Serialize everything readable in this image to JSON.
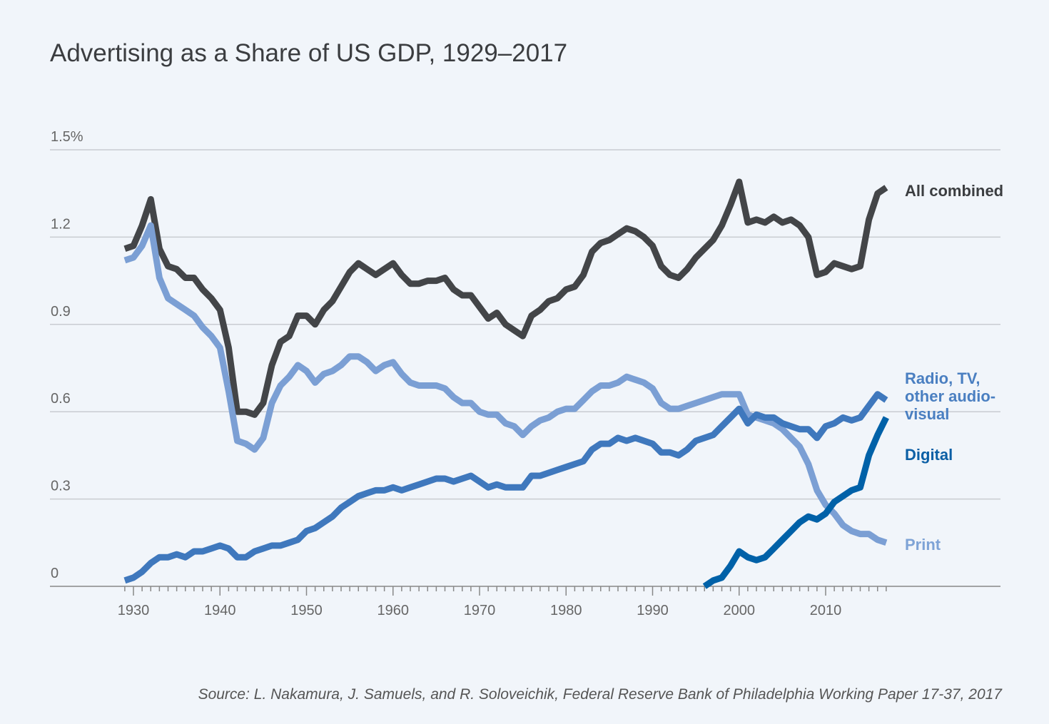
{
  "chart_data": {
    "type": "line",
    "title": "Advertising as a Share of US GDP, 1929–2017",
    "source": "Source: L. Nakamura, J. Samuels, and R. Soloveichik, Federal Reserve Bank of Philadelphia Working Paper 17-37, 2017",
    "xlabel": "",
    "ylabel": "",
    "xlim": [
      1929,
      2017
    ],
    "ylim": [
      0,
      1.5
    ],
    "y_ticks": [
      0,
      0.3,
      0.6,
      0.9,
      1.2,
      1.5
    ],
    "y_tick_labels": [
      "0",
      "0.3",
      "0.6",
      "0.9",
      "1.2",
      "1.5%"
    ],
    "x_ticks": [
      1930,
      1940,
      1950,
      1960,
      1970,
      1980,
      1990,
      2000,
      2010
    ],
    "x_tick_labels": [
      "1930",
      "1940",
      "1950",
      "1960",
      "1970",
      "1980",
      "1990",
      "2000",
      "2010"
    ],
    "grid": "horizontal",
    "series": [
      {
        "name": "All combined",
        "color": "#434548",
        "x_start": 1929,
        "values": [
          1.16,
          1.17,
          1.24,
          1.33,
          1.16,
          1.1,
          1.09,
          1.06,
          1.06,
          1.02,
          0.99,
          0.95,
          0.82,
          0.6,
          0.6,
          0.59,
          0.63,
          0.76,
          0.84,
          0.86,
          0.93,
          0.93,
          0.9,
          0.95,
          0.98,
          1.03,
          1.08,
          1.11,
          1.09,
          1.07,
          1.09,
          1.11,
          1.07,
          1.04,
          1.04,
          1.05,
          1.05,
          1.06,
          1.02,
          1.0,
          1.0,
          0.96,
          0.92,
          0.94,
          0.9,
          0.88,
          0.86,
          0.93,
          0.95,
          0.98,
          0.99,
          1.02,
          1.03,
          1.07,
          1.15,
          1.18,
          1.19,
          1.21,
          1.23,
          1.22,
          1.2,
          1.17,
          1.1,
          1.07,
          1.06,
          1.09,
          1.13,
          1.16,
          1.19,
          1.24,
          1.31,
          1.39,
          1.25,
          1.26,
          1.25,
          1.27,
          1.25,
          1.26,
          1.24,
          1.2,
          1.07,
          1.08,
          1.11,
          1.1,
          1.09,
          1.1,
          1.26,
          1.35,
          1.37
        ]
      },
      {
        "name": "Print",
        "color": "#7b9fd4",
        "x_start": 1929,
        "values": [
          1.12,
          1.13,
          1.17,
          1.24,
          1.06,
          0.99,
          0.97,
          0.95,
          0.93,
          0.89,
          0.86,
          0.82,
          0.67,
          0.5,
          0.49,
          0.47,
          0.51,
          0.63,
          0.69,
          0.72,
          0.76,
          0.74,
          0.7,
          0.73,
          0.74,
          0.76,
          0.79,
          0.79,
          0.77,
          0.74,
          0.76,
          0.77,
          0.73,
          0.7,
          0.69,
          0.69,
          0.69,
          0.68,
          0.65,
          0.63,
          0.63,
          0.6,
          0.59,
          0.59,
          0.56,
          0.55,
          0.52,
          0.55,
          0.57,
          0.58,
          0.6,
          0.61,
          0.61,
          0.64,
          0.67,
          0.69,
          0.69,
          0.7,
          0.72,
          0.71,
          0.7,
          0.68,
          0.63,
          0.61,
          0.61,
          0.62,
          0.63,
          0.64,
          0.65,
          0.66,
          0.66,
          0.66,
          0.59,
          0.58,
          0.57,
          0.56,
          0.54,
          0.51,
          0.48,
          0.42,
          0.33,
          0.28,
          0.25,
          0.21,
          0.19,
          0.18,
          0.18,
          0.16,
          0.15
        ]
      },
      {
        "name": "Radio, TV, other audio-visual",
        "color": "#3f78bd",
        "x_start": 1929,
        "values": [
          0.02,
          0.03,
          0.05,
          0.08,
          0.1,
          0.1,
          0.11,
          0.1,
          0.12,
          0.12,
          0.13,
          0.14,
          0.13,
          0.1,
          0.1,
          0.12,
          0.13,
          0.14,
          0.14,
          0.15,
          0.16,
          0.19,
          0.2,
          0.22,
          0.24,
          0.27,
          0.29,
          0.31,
          0.32,
          0.33,
          0.33,
          0.34,
          0.33,
          0.34,
          0.35,
          0.36,
          0.37,
          0.37,
          0.36,
          0.37,
          0.38,
          0.36,
          0.34,
          0.35,
          0.34,
          0.34,
          0.34,
          0.38,
          0.38,
          0.39,
          0.4,
          0.41,
          0.42,
          0.43,
          0.47,
          0.49,
          0.49,
          0.51,
          0.5,
          0.51,
          0.5,
          0.49,
          0.46,
          0.46,
          0.45,
          0.47,
          0.5,
          0.51,
          0.52,
          0.55,
          0.58,
          0.61,
          0.56,
          0.59,
          0.58,
          0.58,
          0.56,
          0.55,
          0.54,
          0.54,
          0.51,
          0.55,
          0.56,
          0.58,
          0.57,
          0.58,
          0.62,
          0.66,
          0.64
        ]
      },
      {
        "name": "Digital",
        "color": "#0061a8",
        "x_start": 1996,
        "values": [
          0.0,
          0.02,
          0.03,
          0.07,
          0.12,
          0.1,
          0.09,
          0.1,
          0.13,
          0.16,
          0.19,
          0.22,
          0.24,
          0.23,
          0.25,
          0.29,
          0.31,
          0.33,
          0.34,
          0.45,
          0.52,
          0.58
        ]
      }
    ],
    "legend": "inline-right"
  }
}
